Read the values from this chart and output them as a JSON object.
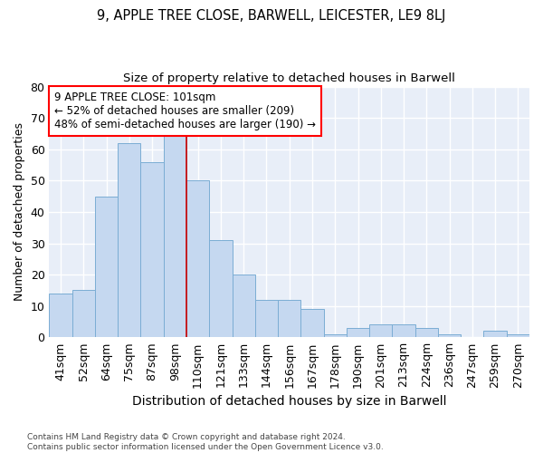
{
  "title1": "9, APPLE TREE CLOSE, BARWELL, LEICESTER, LE9 8LJ",
  "title2": "Size of property relative to detached houses in Barwell",
  "xlabel": "Distribution of detached houses by size in Barwell",
  "ylabel": "Number of detached properties",
  "categories": [
    "41sqm",
    "52sqm",
    "64sqm",
    "75sqm",
    "87sqm",
    "98sqm",
    "110sqm",
    "121sqm",
    "133sqm",
    "144sqm",
    "156sqm",
    "167sqm",
    "178sqm",
    "190sqm",
    "201sqm",
    "213sqm",
    "224sqm",
    "236sqm",
    "247sqm",
    "259sqm",
    "270sqm"
  ],
  "values": [
    14,
    15,
    45,
    62,
    56,
    68,
    50,
    31,
    20,
    12,
    12,
    9,
    1,
    3,
    4,
    4,
    3,
    1,
    0,
    2,
    1
  ],
  "bar_color": "#c5d8f0",
  "bar_edge_color": "#7badd4",
  "background_color": "#e8eef8",
  "grid_color": "#ffffff",
  "annotation_line1": "9 APPLE TREE CLOSE: 101sqm",
  "annotation_line2": "← 52% of detached houses are smaller (209)",
  "annotation_line3": "48% of semi-detached houses are larger (190) →",
  "vline_x_index": 5,
  "ylim": [
    0,
    80
  ],
  "yticks": [
    0,
    10,
    20,
    30,
    40,
    50,
    60,
    70,
    80
  ],
  "footnote1": "Contains HM Land Registry data © Crown copyright and database right 2024.",
  "footnote2": "Contains public sector information licensed under the Open Government Licence v3.0."
}
